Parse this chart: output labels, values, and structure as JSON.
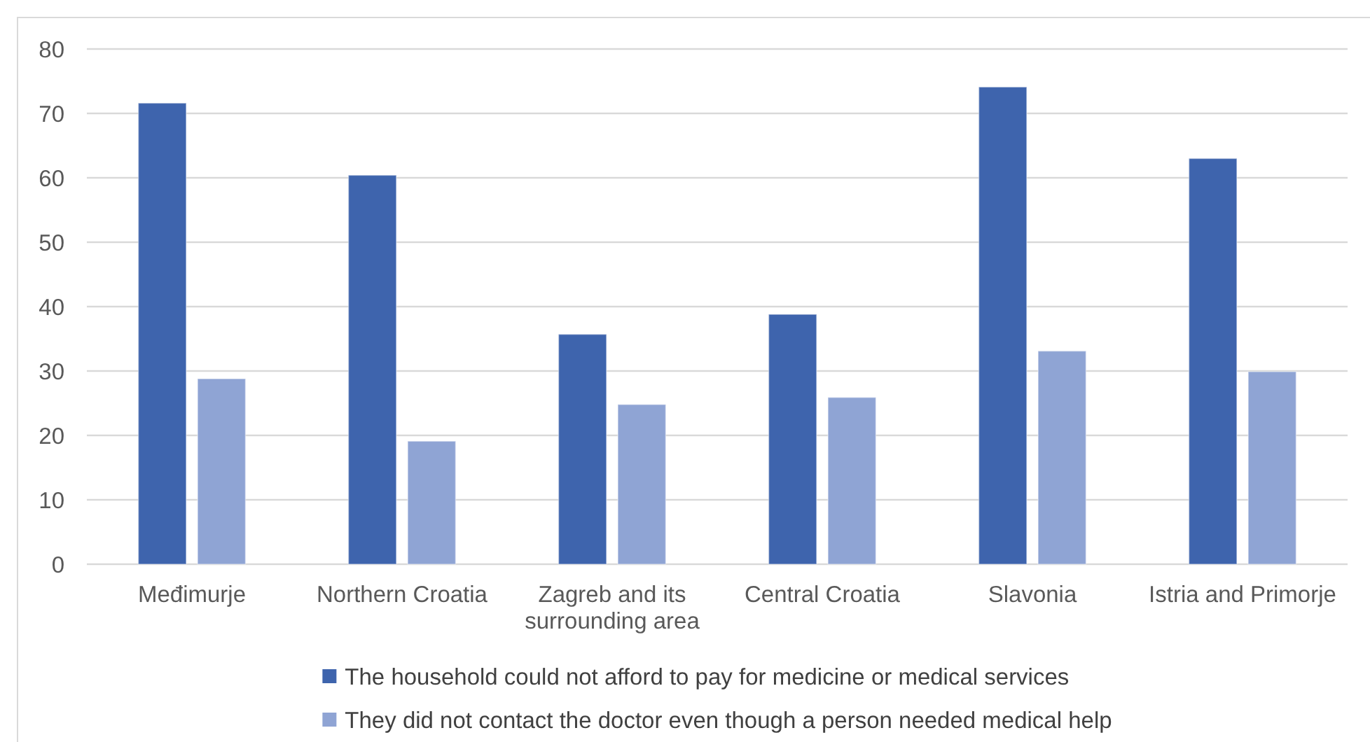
{
  "chart_data": {
    "type": "bar",
    "categories": [
      "Međimurje",
      "Northern Croatia",
      "Zagreb and its surrounding area",
      "Central Croatia",
      "Slavonia",
      "Istria and Primorje"
    ],
    "series": [
      {
        "name": "The household could not afford to pay for medicine or medical services",
        "color": "#3e64ad",
        "values": [
          71.6,
          60.4,
          35.7,
          38.8,
          74.1,
          63.0
        ]
      },
      {
        "name": "They did not contact the doctor even though a person needed medical help",
        "color": "#8fa4d4",
        "values": [
          28.8,
          19.1,
          24.8,
          25.9,
          33.1,
          29.9
        ]
      }
    ],
    "ylim": [
      0,
      80
    ],
    "yticks": [
      0,
      10,
      20,
      30,
      40,
      50,
      60,
      70,
      80
    ],
    "grid": "y",
    "legend": "bottom"
  }
}
